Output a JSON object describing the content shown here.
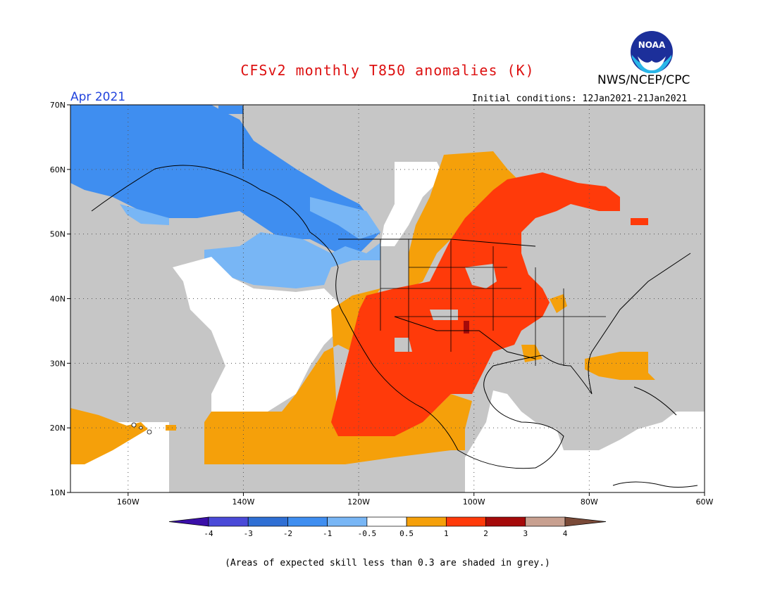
{
  "header": {
    "title": "CFSv2 monthly T850 anomalies (K)",
    "organization": "NWS/NCEP/CPC",
    "logo_text": "NOAA",
    "month": "Apr 2021",
    "initial_conditions": "Initial conditions: 12Jan2021-21Jan2021"
  },
  "axes": {
    "lat_labels": [
      "70N",
      "60N",
      "50N",
      "40N",
      "30N",
      "20N",
      "10N"
    ],
    "lon_labels": [
      "160W",
      "140W",
      "120W",
      "100W",
      "80W",
      "60W"
    ],
    "lat_values": [
      70,
      60,
      50,
      40,
      30,
      20,
      10
    ],
    "lon_values": [
      -160,
      -140,
      -120,
      -100,
      -80,
      -60
    ],
    "lon_range": [
      -170,
      -60
    ],
    "lat_range": [
      10,
      70
    ]
  },
  "colorbar": {
    "labels": [
      "-4",
      "-3",
      "-2",
      "-1",
      "-0.5",
      "0.5",
      "1",
      "2",
      "3",
      "4"
    ],
    "colors": [
      "#3a0fa8",
      "#4a4ad8",
      "#2f6fd4",
      "#3f8ef0",
      "#78b6f5",
      "#ffffff",
      "#f5a00a",
      "#ff3a0a",
      "#a50a0a",
      "#c8a090",
      "#7a4a38"
    ]
  },
  "footnote": "(Areas of expected skill less than 0.3 are shaded in grey.)",
  "colors": {
    "title": "#dd1111",
    "month": "#2244dd",
    "grey": "#c6c6c6",
    "blue_dark": "#3f8ef0",
    "blue_light": "#78b6f5",
    "orange": "#f5a00a",
    "red": "#ff3a0a",
    "darkred": "#a50a0a"
  }
}
